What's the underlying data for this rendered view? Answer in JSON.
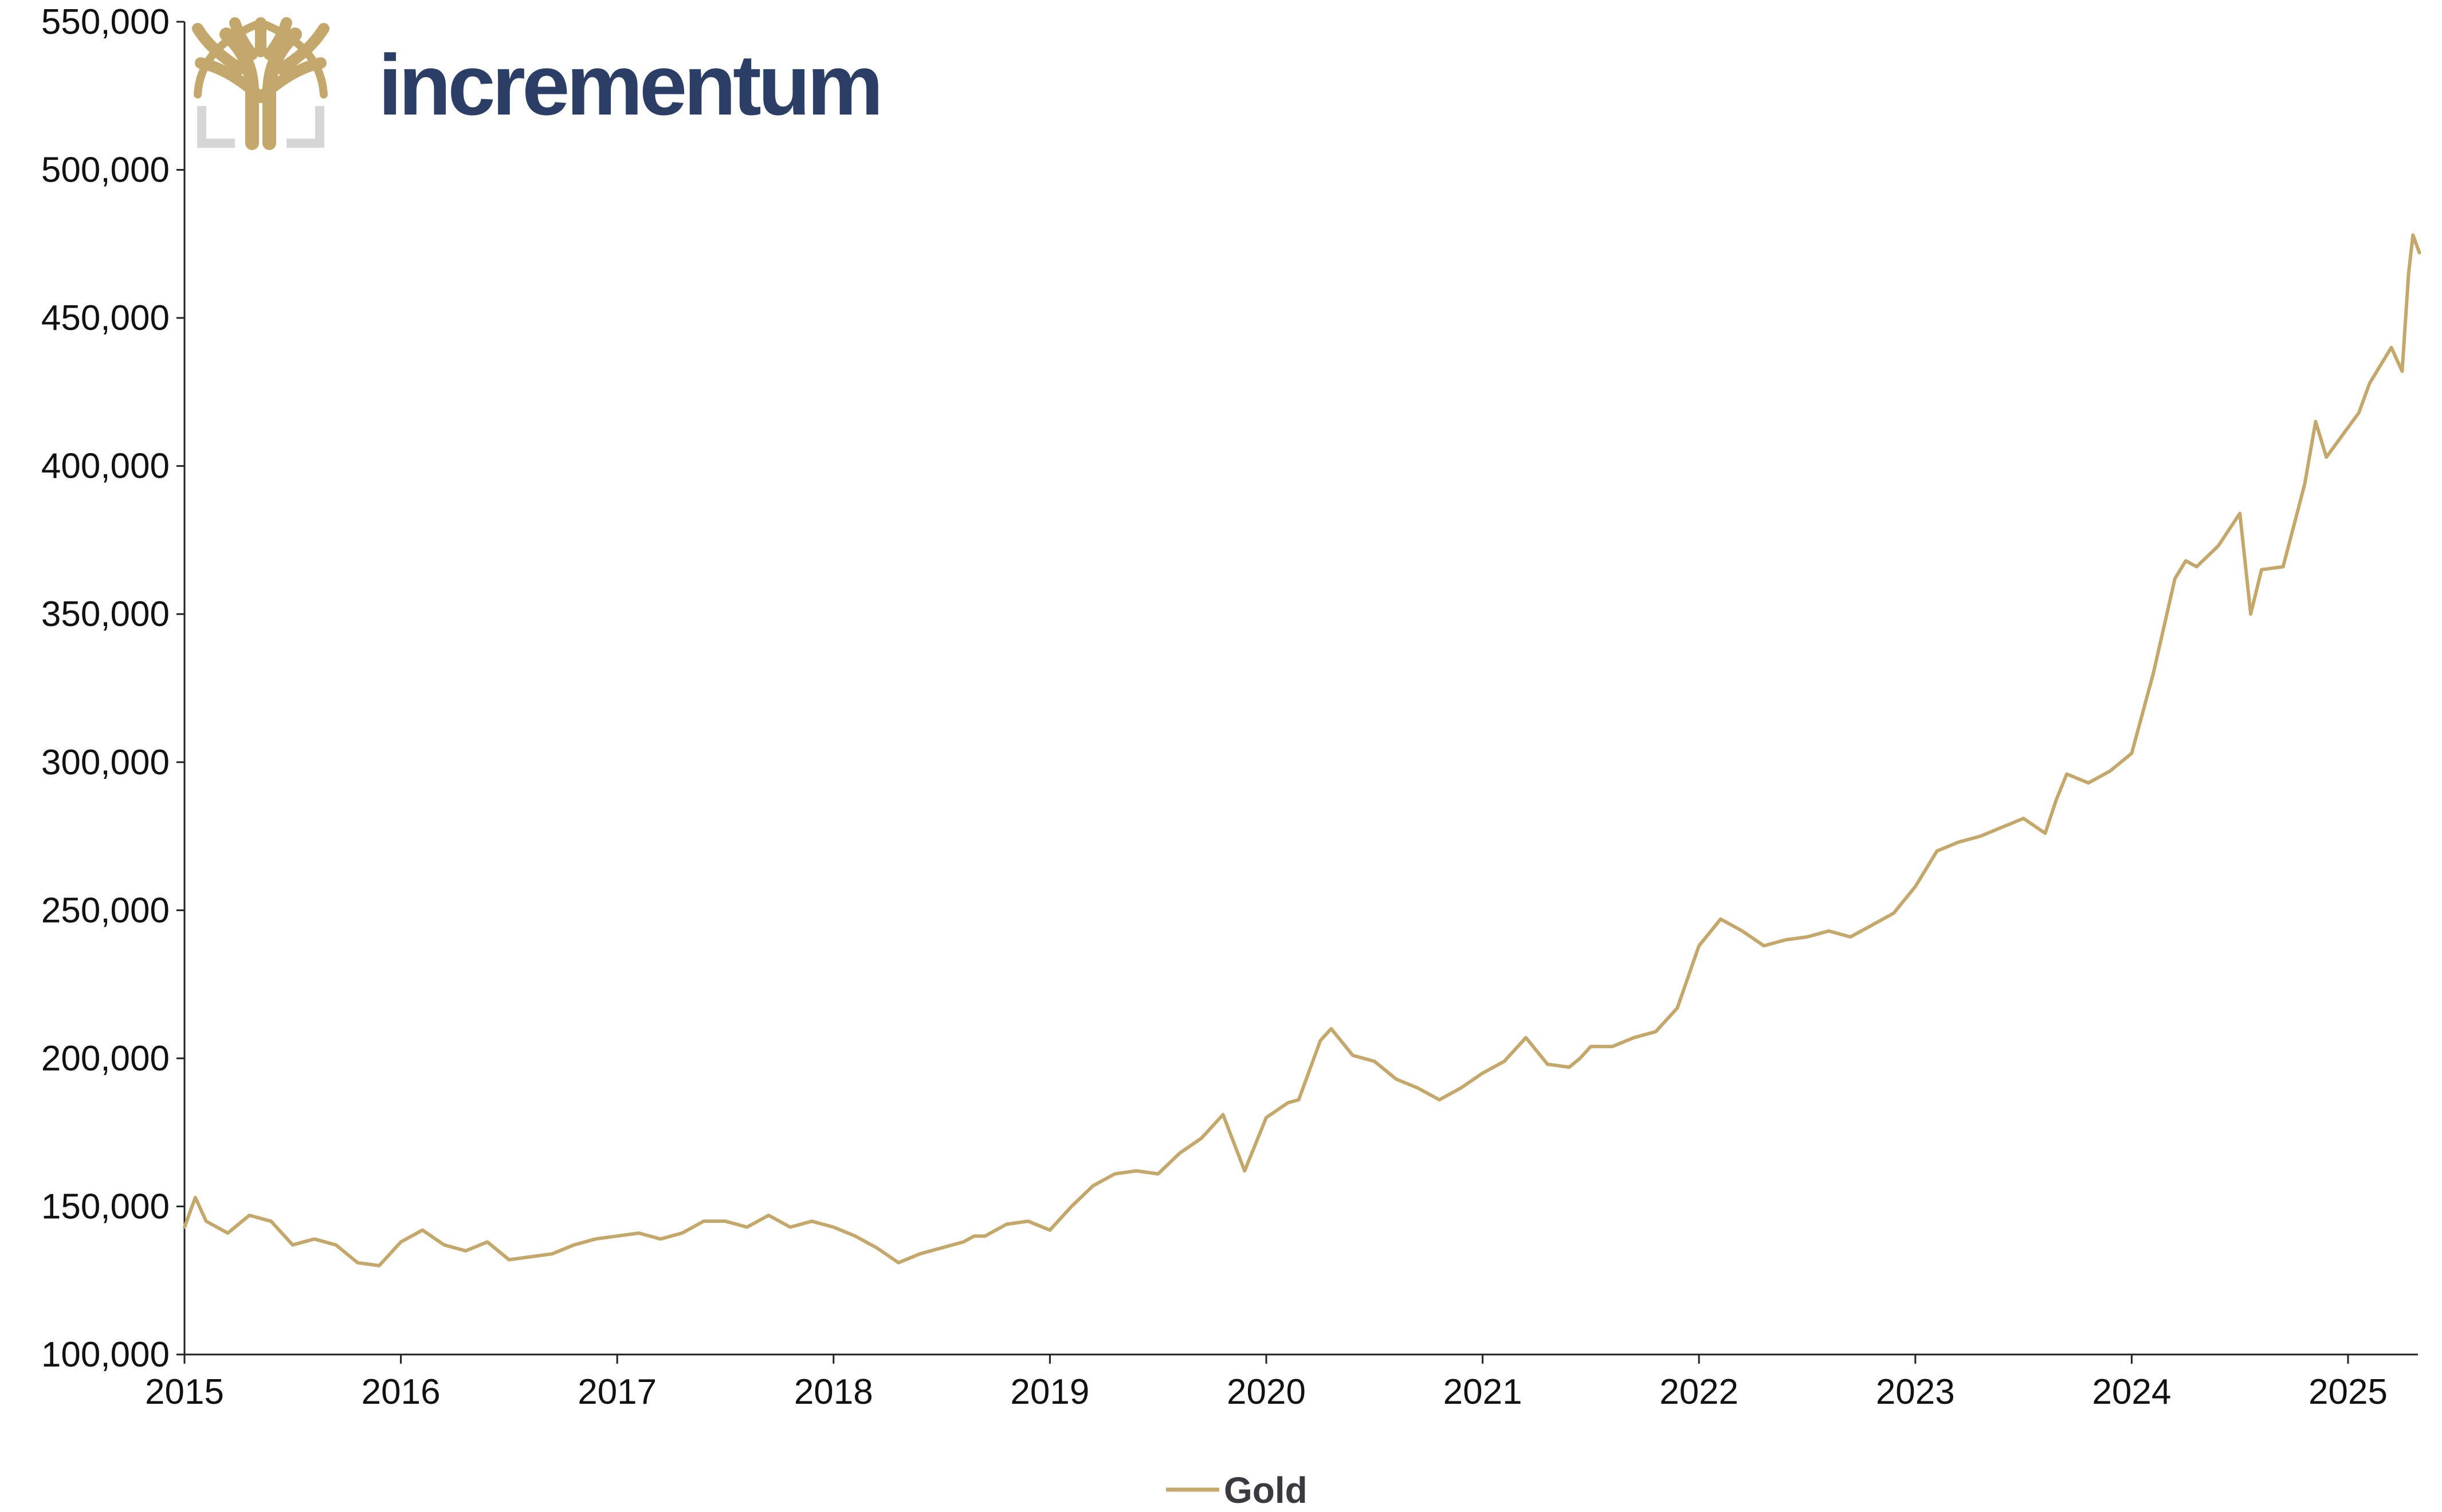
{
  "brand": {
    "name": "incrementum",
    "text_color": "#2b3e66",
    "logo_color": "#c4a76a",
    "frame_color": "#d6d6d6"
  },
  "chart_data": {
    "type": "line",
    "title": "",
    "xlabel": "",
    "ylabel": "",
    "x_ticks": [
      "2015",
      "2016",
      "2017",
      "2018",
      "2019",
      "2020",
      "2021",
      "2022",
      "2023",
      "2024",
      "2025"
    ],
    "y_ticks": [
      "100,000",
      "150,000",
      "200,000",
      "250,000",
      "300,000",
      "350,000",
      "400,000",
      "450,000",
      "500,000",
      "550,000"
    ],
    "ylim": [
      100000,
      550000
    ],
    "xlim": [
      2015.0,
      2025.33
    ],
    "grid": false,
    "legend": {
      "position": "bottom-center"
    },
    "series": [
      {
        "name": "Gold",
        "color": "#c4a76a",
        "x": [
          2015.0,
          2015.05,
          2015.1,
          2015.2,
          2015.3,
          2015.4,
          2015.5,
          2015.6,
          2015.7,
          2015.8,
          2015.9,
          2016.0,
          2016.1,
          2016.2,
          2016.3,
          2016.4,
          2016.5,
          2016.6,
          2016.7,
          2016.8,
          2016.9,
          2017.0,
          2017.1,
          2017.2,
          2017.3,
          2017.4,
          2017.5,
          2017.6,
          2017.7,
          2017.8,
          2017.9,
          2018.0,
          2018.1,
          2018.2,
          2018.3,
          2018.4,
          2018.5,
          2018.6,
          2018.65,
          2018.7,
          2018.8,
          2018.9,
          2019.0,
          2019.1,
          2019.2,
          2019.3,
          2019.4,
          2019.5,
          2019.6,
          2019.7,
          2019.8,
          2019.9,
          2020.0,
          2020.1,
          2020.15,
          2020.2,
          2020.25,
          2020.3,
          2020.4,
          2020.5,
          2020.55,
          2020.6,
          2020.7,
          2020.8,
          2020.9,
          2021.0,
          2021.1,
          2021.2,
          2021.3,
          2021.4,
          2021.45,
          2021.5,
          2021.6,
          2021.7,
          2021.8,
          2021.9,
          2022.0,
          2022.1,
          2022.2,
          2022.3,
          2022.4,
          2022.5,
          2022.6,
          2022.7,
          2022.8,
          2022.9,
          2023.0,
          2023.1,
          2023.2,
          2023.3,
          2023.4,
          2023.5,
          2023.6,
          2023.65,
          2023.7,
          2023.8,
          2023.9,
          2024.0,
          2024.1,
          2024.2,
          2024.25,
          2024.3,
          2024.4,
          2024.5,
          2024.55,
          2024.6,
          2024.7,
          2024.8,
          2024.85,
          2024.9,
          2025.0,
          2025.05,
          2025.1,
          2025.2,
          2025.25,
          2025.28,
          2025.3,
          2025.33
        ],
        "y": [
          143000,
          153000,
          145000,
          141000,
          147000,
          145000,
          137000,
          139000,
          137000,
          131000,
          130000,
          138000,
          142000,
          137000,
          135000,
          138000,
          132000,
          133000,
          134000,
          137000,
          139000,
          140000,
          141000,
          139000,
          141000,
          145000,
          145000,
          143000,
          147000,
          143000,
          145000,
          143000,
          140000,
          136000,
          131000,
          134000,
          136000,
          138000,
          140000,
          140000,
          144000,
          145000,
          142000,
          150000,
          157000,
          161000,
          162000,
          161000,
          168000,
          173000,
          181000,
          162000,
          180000,
          185000,
          186000,
          196000,
          206000,
          210000,
          201000,
          199000,
          196000,
          193000,
          190000,
          186000,
          190000,
          195000,
          199000,
          207000,
          198000,
          197000,
          200000,
          204000,
          204000,
          207000,
          209000,
          217000,
          238000,
          247000,
          243000,
          238000,
          240000,
          241000,
          243000,
          241000,
          245000,
          249000,
          258000,
          270000,
          273000,
          275000,
          278000,
          281000,
          276000,
          287000,
          296000,
          293000,
          297000,
          303000,
          330000,
          362000,
          368000,
          366000,
          373000,
          384000,
          350000,
          365000,
          366000,
          394000,
          415000,
          403000,
          413000,
          418000,
          428000,
          440000,
          432000,
          465000,
          478000,
          472000
        ]
      }
    ]
  }
}
